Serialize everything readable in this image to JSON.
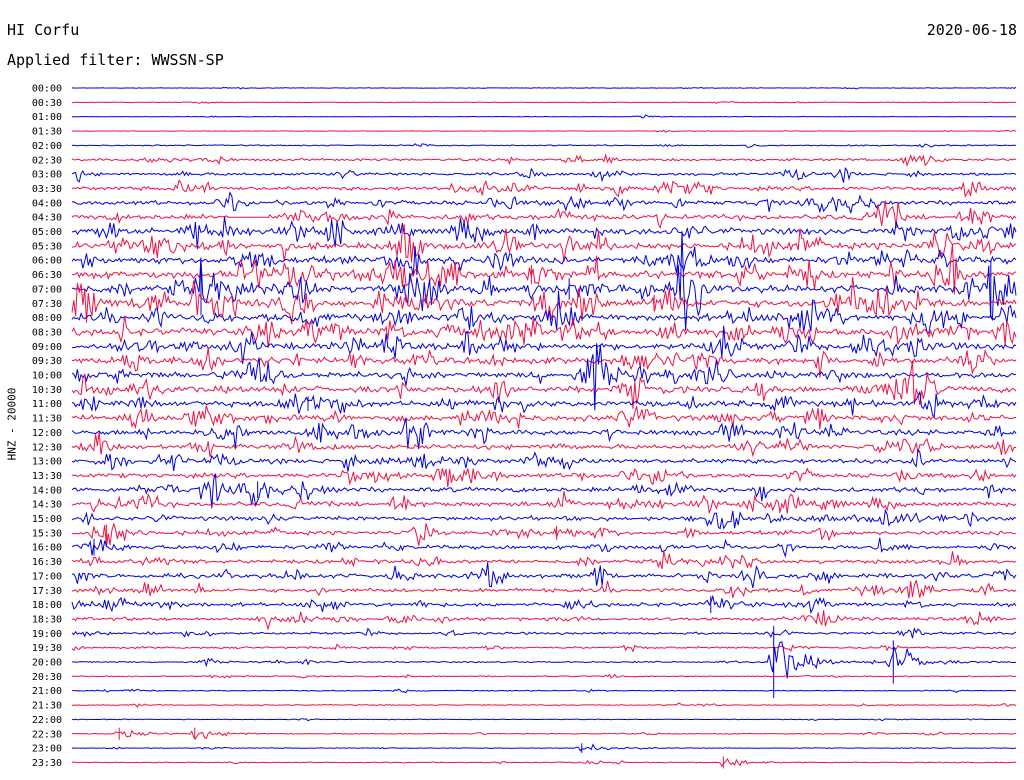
{
  "header": {
    "station": "HI Corfu",
    "date": "2020-06-18",
    "filter": "Applied filter: WWSSN-SP"
  },
  "axis": {
    "ylabel": "HNZ - 20000"
  },
  "chart_data": {
    "type": "line",
    "title": "HI Corfu",
    "subtitle": "Applied filter: WWSSN-SP",
    "ylabel": "HNZ - 20000",
    "row_labels": [
      "00:00",
      "00:30",
      "01:00",
      "01:30",
      "02:00",
      "02:30",
      "03:00",
      "03:30",
      "04:00",
      "04:30",
      "05:00",
      "05:30",
      "06:00",
      "06:30",
      "07:00",
      "07:30",
      "08:00",
      "08:30",
      "09:00",
      "09:30",
      "10:00",
      "10:30",
      "11:00",
      "11:30",
      "12:00",
      "12:30",
      "13:00",
      "13:30",
      "14:00",
      "14:30",
      "15:00",
      "15:30",
      "16:00",
      "16:30",
      "17:00",
      "17:30",
      "18:00",
      "18:30",
      "19:00",
      "19:30",
      "20:00",
      "20:30",
      "21:00",
      "21:30",
      "22:00",
      "22:30",
      "23:00",
      "23:30"
    ],
    "colors": [
      "#0000dd",
      "#ee1144"
    ],
    "noise_level": [
      0.2,
      0.3,
      0.2,
      0.2,
      0.5,
      1.0,
      1.2,
      1.6,
      1.8,
      2.2,
      2.6,
      2.8,
      2.8,
      3.0,
      3.0,
      3.2,
      3.0,
      3.0,
      2.8,
      2.6,
      2.6,
      2.6,
      2.4,
      2.4,
      2.2,
      2.0,
      2.0,
      1.8,
      2.0,
      2.0,
      1.8,
      1.6,
      1.6,
      1.6,
      1.8,
      1.6,
      1.6,
      1.4,
      1.0,
      0.8,
      0.6,
      0.5,
      0.4,
      0.4,
      0.3,
      0.4,
      0.3,
      0.4
    ],
    "events": [
      {
        "row": 14,
        "t": 4.1,
        "amp": 22
      },
      {
        "row": 14,
        "t": 29.2,
        "amp": 24
      },
      {
        "row": 13,
        "t": 14.6,
        "amp": 8
      },
      {
        "row": 14,
        "t": 15.8,
        "amp": 9
      },
      {
        "row": 15,
        "t": 18.5,
        "amp": 7
      },
      {
        "row": 22,
        "t": 7.5,
        "amp": 6
      },
      {
        "row": 28,
        "t": 5.9,
        "amp": 7
      },
      {
        "row": 31,
        "t": 1.1,
        "amp": 7
      },
      {
        "row": 31,
        "t": 15.4,
        "amp": 6
      },
      {
        "row": 32,
        "t": 0.7,
        "amp": 7
      },
      {
        "row": 36,
        "t": 20.3,
        "amp": 7
      },
      {
        "row": 40,
        "t": 22.3,
        "amp": 30
      },
      {
        "row": 40,
        "t": 26.1,
        "amp": 18
      },
      {
        "row": 45,
        "t": 1.5,
        "amp": 5
      },
      {
        "row": 45,
        "t": 3.9,
        "amp": 5
      },
      {
        "row": 46,
        "t": 16.2,
        "amp": 4
      },
      {
        "row": 47,
        "t": 20.7,
        "amp": 5
      }
    ],
    "gap": {
      "row": 9,
      "t_start": 5.0,
      "t_end": 6.2
    }
  }
}
